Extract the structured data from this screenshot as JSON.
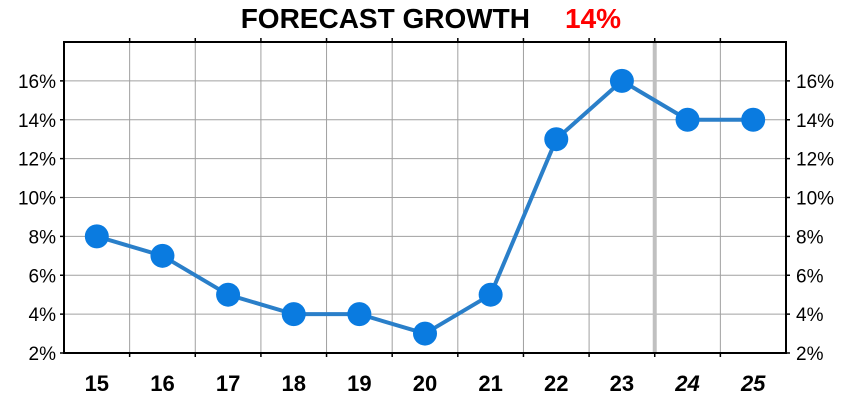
{
  "chart_data": {
    "type": "line",
    "title": "FORECAST GROWTH",
    "title_value": "14%",
    "categories": [
      "15",
      "16",
      "17",
      "18",
      "19",
      "20",
      "21",
      "22",
      "23",
      "24",
      "25"
    ],
    "projected_categories": [
      "24",
      "25"
    ],
    "series": [
      {
        "values": [
          8,
          7,
          5,
          4,
          4,
          3,
          5,
          13,
          16,
          14,
          14
        ]
      }
    ],
    "ylim": [
      2,
      18
    ],
    "yticks": [
      2,
      4,
      6,
      8,
      10,
      12,
      14,
      16
    ],
    "ytick_labels": [
      "2%",
      "4%",
      "6%",
      "8%",
      "10%",
      "12%",
      "14%",
      "16%"
    ],
    "xlabel": "",
    "ylabel": "",
    "grid": true,
    "colors": {
      "series": "#0a7be0",
      "line": "#2a7fc9",
      "title_value": "#ff0000",
      "grid": "#a0a0a0",
      "divider": "#c0c0c0"
    }
  }
}
